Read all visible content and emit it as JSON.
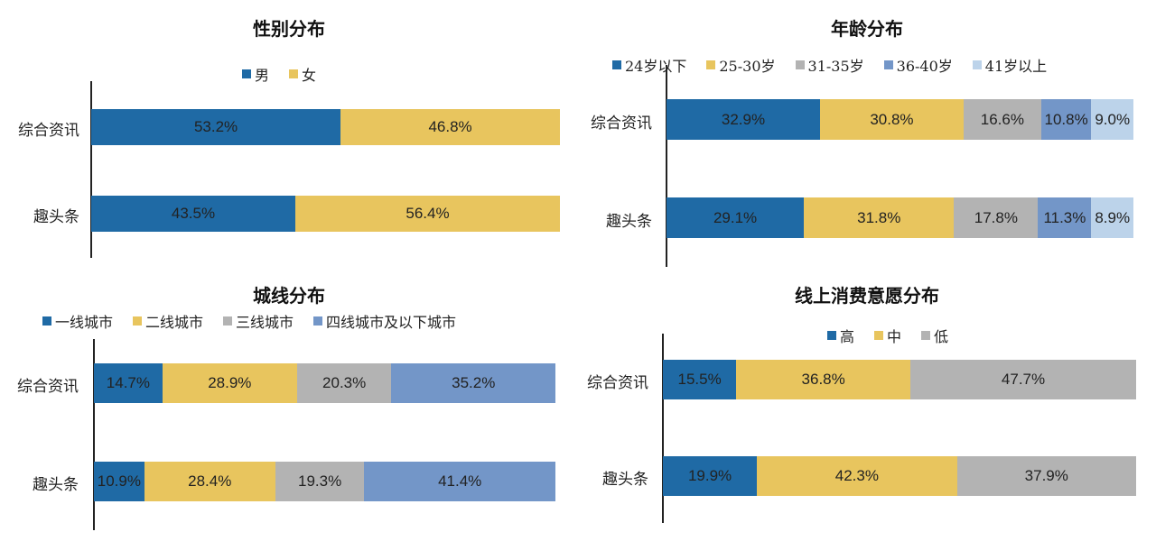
{
  "chart_data": [
    {
      "type": "bar",
      "stacked": true,
      "orientation": "horizontal",
      "title": "性别分布",
      "categories": [
        "综合资讯",
        "趣头条"
      ],
      "series": [
        {
          "name": "男",
          "color": "#1f6aa5",
          "values": [
            53.2,
            43.5
          ],
          "labels": [
            "53.2%",
            "43.5%"
          ]
        },
        {
          "name": "女",
          "color": "#e8c55e",
          "values": [
            46.8,
            56.4
          ],
          "labels": [
            "46.8%",
            "56.4%"
          ]
        }
      ],
      "legend": "top"
    },
    {
      "type": "bar",
      "stacked": true,
      "orientation": "horizontal",
      "title": "年龄分布",
      "categories": [
        "综合资讯",
        "趣头条"
      ],
      "series": [
        {
          "name": "24岁以下",
          "color": "#1f6aa5",
          "values": [
            32.9,
            29.1
          ],
          "labels": [
            "32.9%",
            "29.1%"
          ]
        },
        {
          "name": "25-30岁",
          "color": "#e8c55e",
          "values": [
            30.8,
            31.8
          ],
          "labels": [
            "30.8%",
            "31.8%"
          ]
        },
        {
          "name": "31-35岁",
          "color": "#b3b3b3",
          "values": [
            16.6,
            17.8
          ],
          "labels": [
            "16.6%",
            "17.8%"
          ]
        },
        {
          "name": "36-40岁",
          "color": "#7396c8",
          "values": [
            10.8,
            11.3
          ],
          "labels": [
            "10.8%",
            "11.3%"
          ]
        },
        {
          "name": "41岁以上",
          "color": "#bcd3ea",
          "values": [
            9.0,
            8.9
          ],
          "labels": [
            "9.0%",
            "8.9%"
          ]
        }
      ],
      "legend": "top"
    },
    {
      "type": "bar",
      "stacked": true,
      "orientation": "horizontal",
      "title": "城线分布",
      "categories": [
        "综合资讯",
        "趣头条"
      ],
      "series": [
        {
          "name": "一线城市",
          "color": "#1f6aa5",
          "values": [
            14.7,
            10.9
          ],
          "labels": [
            "14.7%",
            "10.9%"
          ]
        },
        {
          "name": "二线城市",
          "color": "#e8c55e",
          "values": [
            28.9,
            28.4
          ],
          "labels": [
            "28.9%",
            "28.4%"
          ]
        },
        {
          "name": "三线城市",
          "color": "#b3b3b3",
          "values": [
            20.3,
            19.3
          ],
          "labels": [
            "20.3%",
            "19.3%"
          ]
        },
        {
          "name": "四线城市及以下城市",
          "color": "#7396c8",
          "values": [
            35.2,
            41.4
          ],
          "labels": [
            "35.2%",
            "41.4%"
          ]
        }
      ],
      "legend": "top"
    },
    {
      "type": "bar",
      "stacked": true,
      "orientation": "horizontal",
      "title": "线上消费意愿分布",
      "categories": [
        "综合资讯",
        "趣头条"
      ],
      "series": [
        {
          "name": "高",
          "color": "#1f6aa5",
          "values": [
            15.5,
            19.9
          ],
          "labels": [
            "15.5%",
            "19.9%"
          ]
        },
        {
          "name": "中",
          "color": "#e8c55e",
          "values": [
            36.8,
            42.3
          ],
          "labels": [
            "36.8%",
            "42.3%"
          ]
        },
        {
          "name": "低",
          "color": "#b3b3b3",
          "values": [
            47.7,
            37.9
          ],
          "labels": [
            "47.7%",
            "37.9%"
          ]
        }
      ],
      "legend": "top"
    }
  ]
}
